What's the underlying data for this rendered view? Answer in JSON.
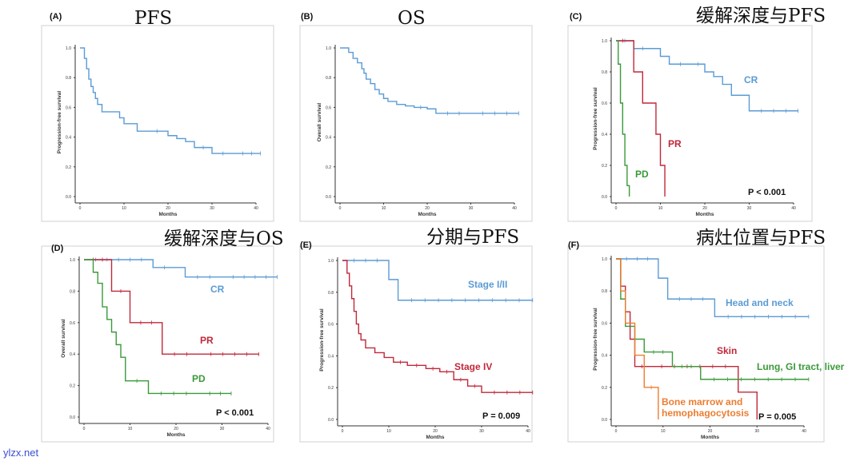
{
  "watermark": "ylzx.net",
  "colors": {
    "blue": "#5b9bd5",
    "red": "#c0283a",
    "green": "#3a9a3a",
    "orange": "#ed7d31"
  },
  "chart_data": [
    {
      "type": "line",
      "label": "(A)",
      "title": "PFS",
      "xlabel": "Months",
      "ylabel": "Progression-free survival",
      "xlim": [
        0,
        40
      ],
      "ylim": [
        0,
        1
      ],
      "xticks": [
        "0",
        "10",
        "20",
        "30",
        "40"
      ],
      "yticks": [
        "0.0",
        "0.2",
        "0.4",
        "0.6",
        "0.8",
        "1.0"
      ],
      "series": [
        {
          "name": "",
          "color": "blue",
          "x": [
            0,
            1,
            1.5,
            2,
            2.5,
            3,
            3.5,
            4,
            5,
            7,
            9,
            10,
            11,
            13,
            15,
            20,
            22,
            24,
            26,
            30,
            35,
            41
          ],
          "y": [
            1.0,
            0.93,
            0.86,
            0.79,
            0.74,
            0.7,
            0.66,
            0.62,
            0.57,
            0.57,
            0.53,
            0.49,
            0.49,
            0.44,
            0.44,
            0.41,
            0.39,
            0.37,
            0.33,
            0.29,
            0.29,
            0.29
          ]
        }
      ]
    },
    {
      "type": "line",
      "label": "(B)",
      "title": "OS",
      "xlabel": "Months",
      "ylabel": "Overall survival",
      "xlim": [
        0,
        40
      ],
      "ylim": [
        0,
        1
      ],
      "xticks": [
        "0",
        "10",
        "20",
        "30",
        "40"
      ],
      "yticks": [
        "0.0",
        "0.2",
        "0.4",
        "0.6",
        "0.8",
        "1.0"
      ],
      "series": [
        {
          "name": "",
          "color": "blue",
          "x": [
            0,
            2,
            3,
            4,
            5,
            5.5,
            6,
            7,
            8,
            9,
            10,
            11,
            13,
            15,
            17,
            20,
            22,
            30,
            41
          ],
          "y": [
            1.0,
            0.97,
            0.93,
            0.9,
            0.86,
            0.83,
            0.79,
            0.76,
            0.72,
            0.69,
            0.66,
            0.64,
            0.62,
            0.61,
            0.6,
            0.59,
            0.56,
            0.56,
            0.56
          ]
        }
      ]
    },
    {
      "type": "line",
      "label": "(C)",
      "title": "缓解深度与PFS",
      "xlabel": "Months",
      "ylabel": "Progression-free survival",
      "xlim": [
        0,
        40
      ],
      "ylim": [
        0,
        1
      ],
      "pvalue": "P < 0.001",
      "xticks": [
        "0",
        "10",
        "20",
        "30",
        "40"
      ],
      "yticks": [
        "0.0",
        "0.2",
        "0.4",
        "0.6",
        "0.8",
        "1.0"
      ],
      "series": [
        {
          "name": "CR",
          "color": "blue",
          "x": [
            0,
            4,
            8,
            10,
            12,
            17,
            20,
            22,
            24,
            26,
            28,
            30,
            41
          ],
          "y": [
            1.0,
            0.95,
            0.95,
            0.9,
            0.85,
            0.85,
            0.8,
            0.77,
            0.72,
            0.65,
            0.65,
            0.55,
            0.55
          ]
        },
        {
          "name": "PR",
          "color": "red",
          "x": [
            0,
            3,
            4,
            6,
            8,
            9,
            10,
            11
          ],
          "y": [
            1.0,
            1.0,
            0.8,
            0.6,
            0.6,
            0.4,
            0.2,
            0.0
          ]
        },
        {
          "name": "PD",
          "color": "green",
          "x": [
            0,
            0.5,
            1,
            1.5,
            2,
            2.5,
            3
          ],
          "y": [
            1.0,
            0.85,
            0.6,
            0.4,
            0.2,
            0.07,
            0.0
          ]
        }
      ]
    },
    {
      "type": "line",
      "label": "(D)",
      "title": "缓解深度与OS",
      "xlabel": "Months",
      "ylabel": "Overall survival",
      "xlim": [
        0,
        40
      ],
      "ylim": [
        0,
        1
      ],
      "pvalue": "P < 0.001",
      "xticks": [
        "0",
        "10",
        "20",
        "30",
        "40"
      ],
      "yticks": [
        "0.0",
        "0.2",
        "0.4",
        "0.6",
        "0.8",
        "1.0"
      ],
      "series": [
        {
          "name": "CR",
          "color": "blue",
          "x": [
            0,
            15,
            20,
            22,
            30,
            42
          ],
          "y": [
            1.0,
            0.95,
            0.95,
            0.89,
            0.89,
            0.89
          ]
        },
        {
          "name": "PR",
          "color": "red",
          "x": [
            0,
            6,
            10,
            17,
            25,
            38
          ],
          "y": [
            1.0,
            0.8,
            0.6,
            0.4,
            0.4,
            0.4
          ]
        },
        {
          "name": "PD",
          "color": "green",
          "x": [
            0,
            2,
            3,
            4,
            5,
            6,
            7,
            8,
            9,
            14,
            25,
            32
          ],
          "y": [
            1.0,
            0.92,
            0.85,
            0.7,
            0.62,
            0.54,
            0.46,
            0.38,
            0.23,
            0.15,
            0.15,
            0.15
          ]
        }
      ]
    },
    {
      "type": "line",
      "label": "(E)",
      "title": "分期与PFS",
      "xlabel": "Months",
      "ylabel": "Progression-free survival",
      "xlim": [
        0,
        40
      ],
      "ylim": [
        0,
        1
      ],
      "pvalue": "P = 0.009",
      "xticks": [
        "0",
        "10",
        "20",
        "30",
        "40"
      ],
      "yticks": [
        "0.0",
        "0.2",
        "0.4",
        "0.6",
        "0.8",
        "1.0"
      ],
      "series": [
        {
          "name": "Stage I/II",
          "color": "blue",
          "x": [
            0,
            10,
            12,
            41
          ],
          "y": [
            1.0,
            0.88,
            0.75,
            0.75
          ]
        },
        {
          "name": "Stage IV",
          "color": "red",
          "x": [
            0,
            1,
            1.5,
            2,
            2.5,
            3,
            3.5,
            4,
            5,
            7,
            9,
            11,
            14,
            18,
            21,
            24,
            27,
            30,
            41
          ],
          "y": [
            1.0,
            0.92,
            0.84,
            0.76,
            0.68,
            0.6,
            0.54,
            0.5,
            0.45,
            0.42,
            0.39,
            0.36,
            0.34,
            0.32,
            0.3,
            0.25,
            0.21,
            0.17,
            0.17
          ]
        }
      ]
    },
    {
      "type": "line",
      "label": "(F)",
      "title": "病灶位置与PFS",
      "xlabel": "Months",
      "ylabel": "Progression-free survival",
      "xlim": [
        0,
        40
      ],
      "ylim": [
        0,
        1
      ],
      "pvalue": "P = 0.005",
      "xticks": [
        "0",
        "10",
        "20",
        "30",
        "40"
      ],
      "yticks": [
        "0.0",
        "0.2",
        "0.4",
        "0.6",
        "0.8",
        "1.0"
      ],
      "series": [
        {
          "name": "Head and neck",
          "color": "blue",
          "x": [
            0,
            9,
            11,
            21,
            41
          ],
          "y": [
            1.0,
            0.88,
            0.75,
            0.64,
            0.64
          ]
        },
        {
          "name": "Skin",
          "color": "red",
          "x": [
            0,
            1,
            2,
            3,
            4,
            7,
            26,
            28,
            30
          ],
          "y": [
            1.0,
            0.83,
            0.67,
            0.5,
            0.33,
            0.33,
            0.17,
            0.17,
            0.0
          ]
        },
        {
          "name": "Lung, GI tract, liver",
          "color": "green",
          "x": [
            0,
            1,
            2,
            4,
            6,
            12,
            18,
            41
          ],
          "y": [
            1.0,
            0.75,
            0.58,
            0.5,
            0.42,
            0.33,
            0.25,
            0.25
          ]
        },
        {
          "name": "Bone marrow and\nhemophagocytosis",
          "color": "orange",
          "x": [
            0,
            1,
            2,
            4,
            6,
            9
          ],
          "y": [
            1.0,
            0.8,
            0.6,
            0.4,
            0.2,
            0.0
          ]
        }
      ]
    }
  ]
}
